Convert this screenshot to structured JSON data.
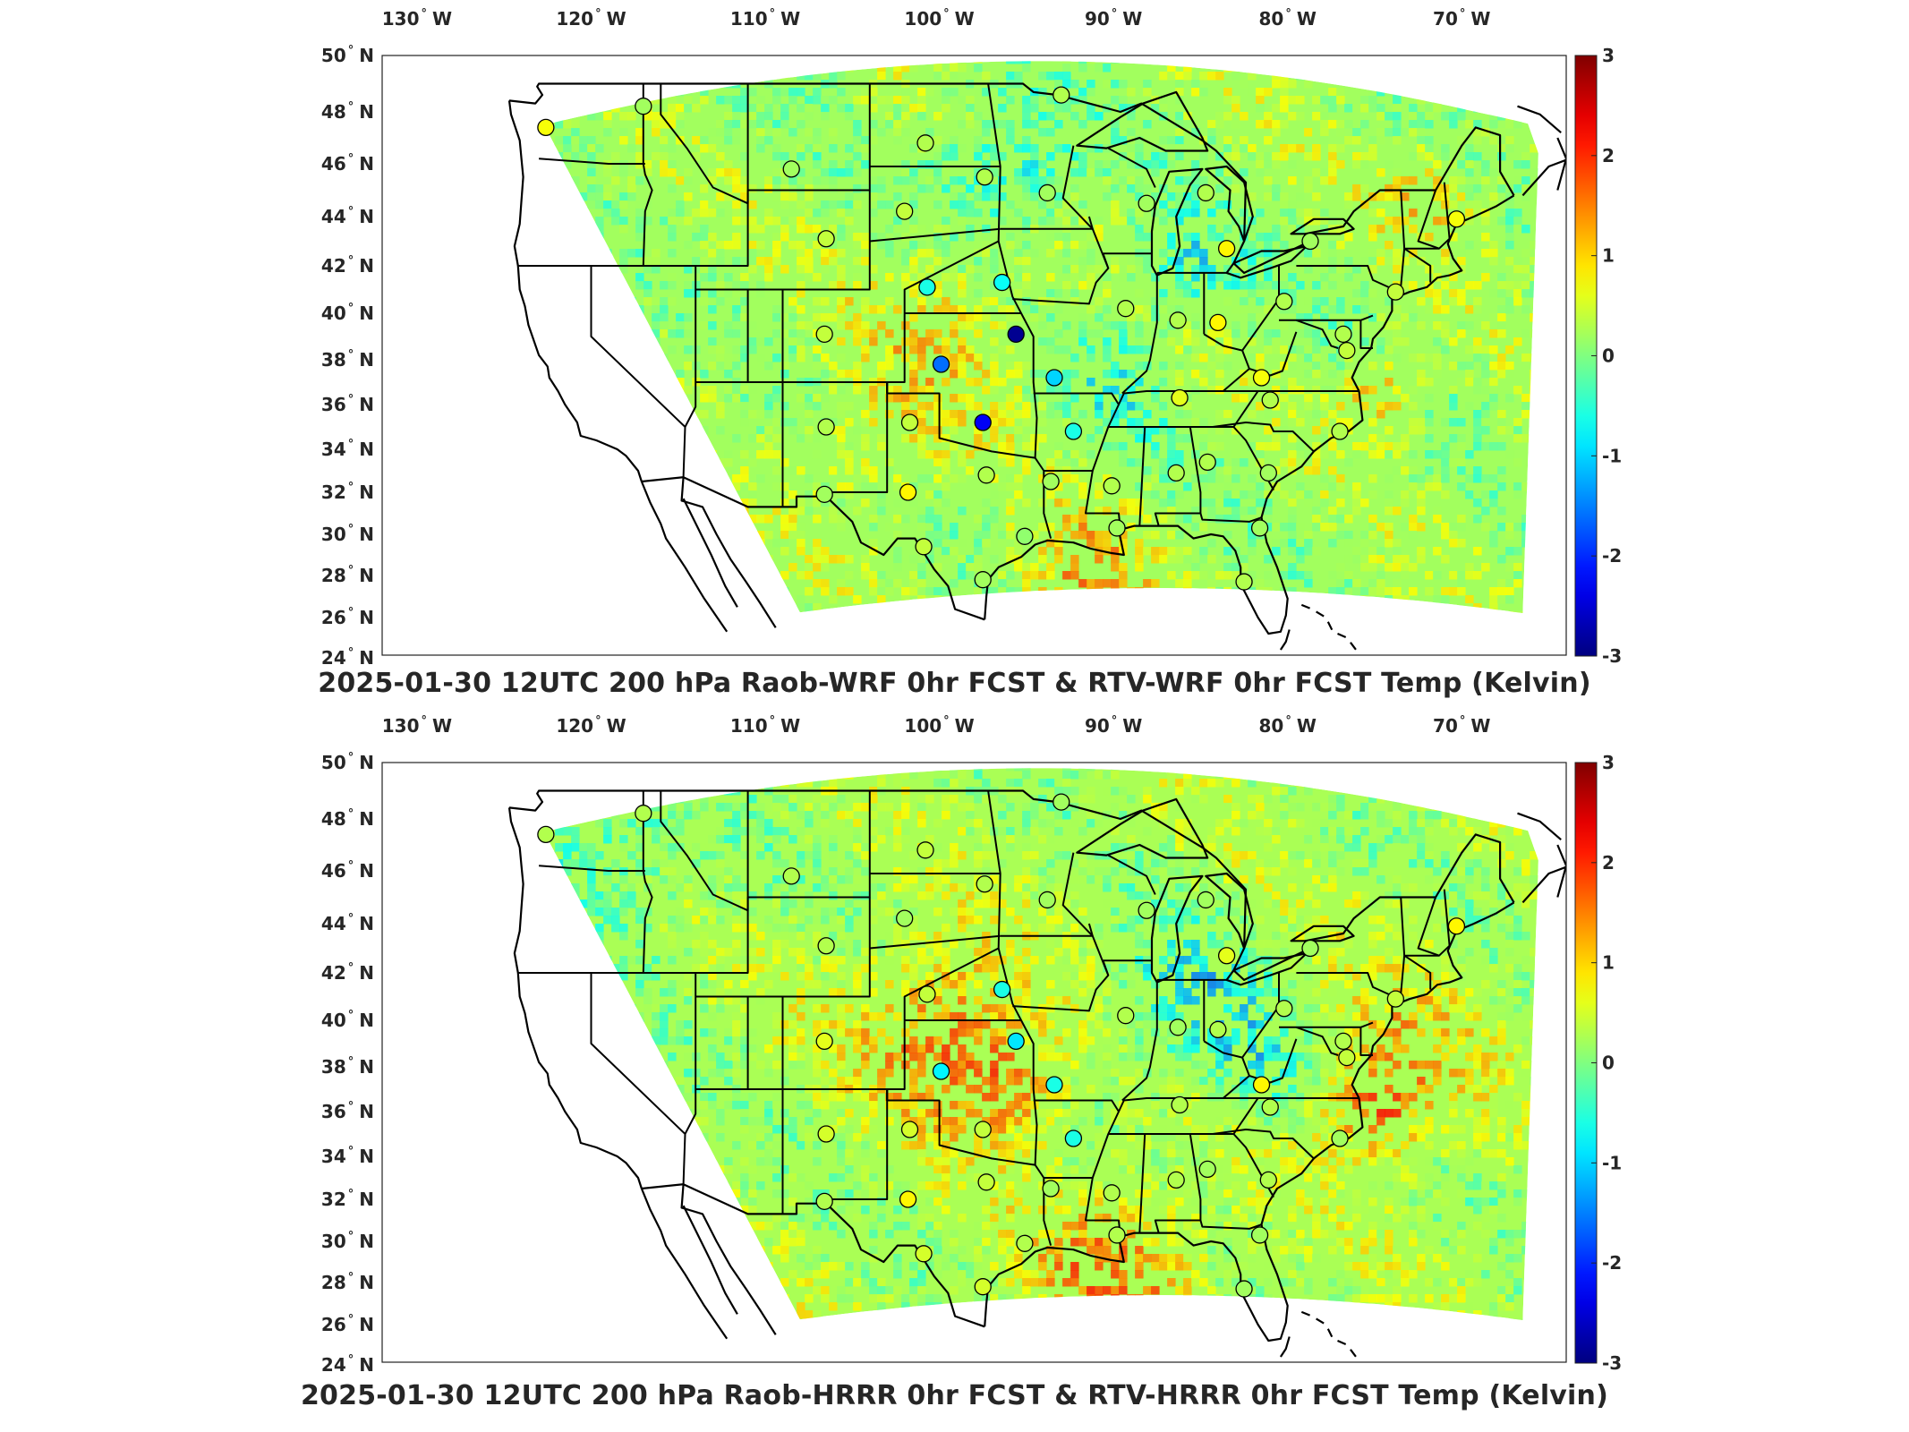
{
  "maps": [
    {
      "title": "2025-01-30 12UTC 200 hPa Raob-WRF 0hr FCST & RTV-WRF 0hr FCST Temp (Kelvin)",
      "stations": [
        {
          "lon": -122.6,
          "lat": 47.4,
          "val": 0.7
        },
        {
          "lon": -117.0,
          "lat": 48.2,
          "val": 0.2
        },
        {
          "lon": -108.5,
          "lat": 45.8,
          "val": 0.2
        },
        {
          "lon": -100.8,
          "lat": 46.8,
          "val": 0.3
        },
        {
          "lon": -97.4,
          "lat": 45.5,
          "val": 0.3
        },
        {
          "lon": -93.0,
          "lat": 48.6,
          "val": 0.3
        },
        {
          "lon": -93.8,
          "lat": 44.9,
          "val": 0.2
        },
        {
          "lon": -102.0,
          "lat": 44.2,
          "val": 0.4
        },
        {
          "lon": -106.5,
          "lat": 43.1,
          "val": 0.4
        },
        {
          "lon": -100.7,
          "lat": 41.1,
          "val": -0.6
        },
        {
          "lon": -96.4,
          "lat": 41.3,
          "val": -0.7
        },
        {
          "lon": -95.6,
          "lat": 39.1,
          "val": -2.9
        },
        {
          "lon": -99.9,
          "lat": 37.8,
          "val": -1.6
        },
        {
          "lon": -93.4,
          "lat": 37.2,
          "val": -1.0
        },
        {
          "lon": -97.5,
          "lat": 35.2,
          "val": -2.3
        },
        {
          "lon": -92.3,
          "lat": 34.8,
          "val": -0.6
        },
        {
          "lon": -106.6,
          "lat": 39.1,
          "val": 0.4
        },
        {
          "lon": -106.5,
          "lat": 35.0,
          "val": 0.3
        },
        {
          "lon": -101.7,
          "lat": 35.2,
          "val": 0.4
        },
        {
          "lon": -101.8,
          "lat": 32.0,
          "val": 0.8
        },
        {
          "lon": -97.3,
          "lat": 32.8,
          "val": 0.3
        },
        {
          "lon": -106.6,
          "lat": 31.9,
          "val": 0.2
        },
        {
          "lon": -100.9,
          "lat": 29.4,
          "val": 0.4
        },
        {
          "lon": -97.5,
          "lat": 27.8,
          "val": 0.2
        },
        {
          "lon": -95.1,
          "lat": 29.9,
          "val": 0.1
        },
        {
          "lon": -93.6,
          "lat": 32.5,
          "val": 0.2
        },
        {
          "lon": -90.1,
          "lat": 32.3,
          "val": 0.3
        },
        {
          "lon": -89.8,
          "lat": 30.3,
          "val": 0.2
        },
        {
          "lon": -86.4,
          "lat": 32.9,
          "val": 0.3
        },
        {
          "lon": -84.6,
          "lat": 33.4,
          "val": 0.3
        },
        {
          "lon": -81.1,
          "lat": 32.9,
          "val": 0.2
        },
        {
          "lon": -81.6,
          "lat": 30.3,
          "val": 0.2
        },
        {
          "lon": -82.5,
          "lat": 27.7,
          "val": 0.3
        },
        {
          "lon": -86.2,
          "lat": 36.3,
          "val": 0.6
        },
        {
          "lon": -81.0,
          "lat": 36.2,
          "val": 0.3
        },
        {
          "lon": -81.5,
          "lat": 37.2,
          "val": 0.7
        },
        {
          "lon": -77.0,
          "lat": 34.8,
          "val": 0.3
        },
        {
          "lon": -89.3,
          "lat": 40.2,
          "val": 0.3
        },
        {
          "lon": -84.0,
          "lat": 39.6,
          "val": 0.8
        },
        {
          "lon": -86.3,
          "lat": 39.7,
          "val": 0.3
        },
        {
          "lon": -80.2,
          "lat": 40.5,
          "val": 0.3
        },
        {
          "lon": -83.5,
          "lat": 42.7,
          "val": 0.8
        },
        {
          "lon": -78.7,
          "lat": 43.0,
          "val": 0.2
        },
        {
          "lon": -88.1,
          "lat": 44.5,
          "val": 0.2
        },
        {
          "lon": -84.7,
          "lat": 44.9,
          "val": 0.3
        },
        {
          "lon": -73.8,
          "lat": 40.9,
          "val": 0.4
        },
        {
          "lon": -76.6,
          "lat": 38.4,
          "val": 0.4
        },
        {
          "lon": -70.3,
          "lat": 43.9,
          "val": 0.7
        },
        {
          "lon": -76.8,
          "lat": 39.1,
          "val": 0.3
        }
      ],
      "hotspots": [
        {
          "lon": -100,
          "lat": 38.5,
          "val": 1.0,
          "r": 5
        },
        {
          "lon": -75,
          "lat": 35.3,
          "val": 1.6,
          "r": 2
        },
        {
          "lon": -92,
          "lat": 27.5,
          "val": 1.4,
          "r": 4
        },
        {
          "lon": -96,
          "lat": 45.5,
          "val": -1.0,
          "r": 4
        },
        {
          "lon": -86,
          "lat": 41,
          "val": -0.9,
          "r": 3
        },
        {
          "lon": -72,
          "lat": 44,
          "val": 1.0,
          "r": 3
        },
        {
          "lon": -104,
          "lat": 33,
          "val": 0.8,
          "r": 4
        },
        {
          "lon": -90,
          "lat": 36,
          "val": -0.6,
          "r": 3
        }
      ],
      "base": 0.2
    },
    {
      "title": "2025-01-30 12UTC 200 hPa Raob-HRRR 0hr FCST & RTV-HRRR 0hr FCST Temp (Kelvin)",
      "stations": [
        {
          "lon": -122.6,
          "lat": 47.4,
          "val": 0.3
        },
        {
          "lon": -117.0,
          "lat": 48.2,
          "val": 0.3
        },
        {
          "lon": -108.5,
          "lat": 45.8,
          "val": 0.3
        },
        {
          "lon": -100.8,
          "lat": 46.8,
          "val": 0.4
        },
        {
          "lon": -97.4,
          "lat": 45.5,
          "val": 0.3
        },
        {
          "lon": -93.0,
          "lat": 48.6,
          "val": 0.2
        },
        {
          "lon": -93.8,
          "lat": 44.9,
          "val": 0.2
        },
        {
          "lon": -102.0,
          "lat": 44.2,
          "val": 0.2
        },
        {
          "lon": -106.5,
          "lat": 43.1,
          "val": 0.3
        },
        {
          "lon": -100.7,
          "lat": 41.1,
          "val": 0.4
        },
        {
          "lon": -96.4,
          "lat": 41.3,
          "val": -0.6
        },
        {
          "lon": -95.6,
          "lat": 39.1,
          "val": -0.9
        },
        {
          "lon": -99.9,
          "lat": 37.8,
          "val": -0.8
        },
        {
          "lon": -93.4,
          "lat": 37.2,
          "val": -0.6
        },
        {
          "lon": -97.5,
          "lat": 35.2,
          "val": 0.4
        },
        {
          "lon": -92.3,
          "lat": 34.8,
          "val": -0.6
        },
        {
          "lon": -106.6,
          "lat": 39.1,
          "val": 0.6
        },
        {
          "lon": -106.5,
          "lat": 35.0,
          "val": 0.5
        },
        {
          "lon": -101.7,
          "lat": 35.2,
          "val": 0.5
        },
        {
          "lon": -101.8,
          "lat": 32.0,
          "val": 0.8
        },
        {
          "lon": -97.3,
          "lat": 32.8,
          "val": 0.4
        },
        {
          "lon": -106.6,
          "lat": 31.9,
          "val": 0.3
        },
        {
          "lon": -100.9,
          "lat": 29.4,
          "val": 0.5
        },
        {
          "lon": -97.5,
          "lat": 27.8,
          "val": 0.5
        },
        {
          "lon": -95.1,
          "lat": 29.9,
          "val": 0.3
        },
        {
          "lon": -93.6,
          "lat": 32.5,
          "val": 0.2
        },
        {
          "lon": -90.1,
          "lat": 32.3,
          "val": 0.3
        },
        {
          "lon": -89.8,
          "lat": 30.3,
          "val": 0.3
        },
        {
          "lon": -86.4,
          "lat": 32.9,
          "val": 0.3
        },
        {
          "lon": -84.6,
          "lat": 33.4,
          "val": 0.2
        },
        {
          "lon": -81.1,
          "lat": 32.9,
          "val": 0.3
        },
        {
          "lon": -81.6,
          "lat": 30.3,
          "val": 0.2
        },
        {
          "lon": -82.5,
          "lat": 27.7,
          "val": 0.2
        },
        {
          "lon": -86.2,
          "lat": 36.3,
          "val": 0.3
        },
        {
          "lon": -81.0,
          "lat": 36.2,
          "val": 0.3
        },
        {
          "lon": -81.5,
          "lat": 37.2,
          "val": 0.8
        },
        {
          "lon": -77.0,
          "lat": 34.8,
          "val": 0.2
        },
        {
          "lon": -89.3,
          "lat": 40.2,
          "val": 0.3
        },
        {
          "lon": -84.0,
          "lat": 39.6,
          "val": 0.3
        },
        {
          "lon": -86.3,
          "lat": 39.7,
          "val": 0.2
        },
        {
          "lon": -80.2,
          "lat": 40.5,
          "val": 0.3
        },
        {
          "lon": -83.5,
          "lat": 42.7,
          "val": 0.6
        },
        {
          "lon": -78.7,
          "lat": 43.0,
          "val": 0.2
        },
        {
          "lon": -88.1,
          "lat": 44.5,
          "val": 0.2
        },
        {
          "lon": -84.7,
          "lat": 44.9,
          "val": 0.2
        },
        {
          "lon": -73.8,
          "lat": 40.9,
          "val": 0.4
        },
        {
          "lon": -76.6,
          "lat": 38.4,
          "val": 0.4
        },
        {
          "lon": -70.3,
          "lat": 43.9,
          "val": 0.8
        },
        {
          "lon": -76.8,
          "lat": 39.1,
          "val": 0.3
        }
      ],
      "hotspots": [
        {
          "lon": -100,
          "lat": 38.5,
          "val": 1.8,
          "r": 5
        },
        {
          "lon": -96,
          "lat": 36,
          "val": 1.4,
          "r": 3
        },
        {
          "lon": -75,
          "lat": 35.3,
          "val": 1.8,
          "r": 3
        },
        {
          "lon": -90,
          "lat": 28,
          "val": 1.6,
          "r": 5
        },
        {
          "lon": -86,
          "lat": 40,
          "val": -1.0,
          "r": 4
        },
        {
          "lon": -82,
          "lat": 37,
          "val": -0.8,
          "r": 3
        },
        {
          "lon": -120,
          "lat": 46,
          "val": -0.6,
          "r": 6
        },
        {
          "lon": -74,
          "lat": 38,
          "val": 1.0,
          "r": 5
        }
      ],
      "base": 0.25
    }
  ],
  "lon_ticks": [
    "130",
    "120",
    "110",
    "100",
    "90",
    "80",
    "70"
  ],
  "lon_suffix": "W",
  "lat_ticks": [
    "50",
    "48",
    "46",
    "44",
    "42",
    "40",
    "38",
    "36",
    "34",
    "32",
    "30",
    "28",
    "26",
    "24"
  ],
  "lat_suffix": "N",
  "degree_symbol": "°",
  "colorbar": {
    "min": -3,
    "max": 3,
    "labels": [
      "3",
      "2",
      "1",
      "0",
      "-1",
      "-2",
      "-3"
    ],
    "colormap": "jet"
  }
}
